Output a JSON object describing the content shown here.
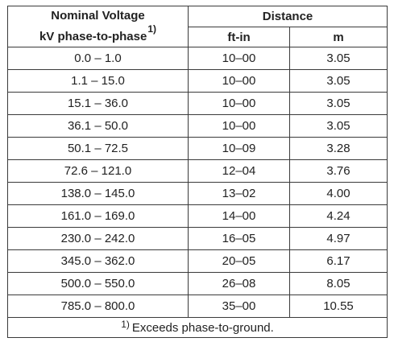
{
  "table": {
    "header": {
      "voltage_line1": "Nominal Voltage",
      "voltage_line2": "kV phase-to-phase",
      "voltage_footnote_mark": "1)",
      "distance": "Distance",
      "ftin": "ft-in",
      "m": "m"
    },
    "rows": [
      {
        "voltage": "0.0 – 1.0",
        "ftin": "10–00",
        "m": "3.05"
      },
      {
        "voltage": "1.1 – 15.0",
        "ftin": "10–00",
        "m": "3.05"
      },
      {
        "voltage": "15.1 – 36.0",
        "ftin": "10–00",
        "m": "3.05"
      },
      {
        "voltage": "36.1 – 50.0",
        "ftin": "10–00",
        "m": "3.05"
      },
      {
        "voltage": "50.1 – 72.5",
        "ftin": "10–09",
        "m": "3.28"
      },
      {
        "voltage": "72.6 – 121.0",
        "ftin": "12–04",
        "m": "3.76"
      },
      {
        "voltage": "138.0 – 145.0",
        "ftin": "13–02",
        "m": "4.00"
      },
      {
        "voltage": "161.0 – 169.0",
        "ftin": "14–00",
        "m": "4.24"
      },
      {
        "voltage": "230.0 – 242.0",
        "ftin": "16–05",
        "m": "4.97"
      },
      {
        "voltage": "345.0 – 362.0",
        "ftin": "20–05",
        "m": "6.17"
      },
      {
        "voltage": "500.0 – 550.0",
        "ftin": "26–08",
        "m": "8.05"
      },
      {
        "voltage": "785.0 – 800.0",
        "ftin": "35–00",
        "m": "10.55"
      }
    ],
    "footnote": {
      "mark": "1)",
      "text": "Exceeds phase-to-ground."
    }
  }
}
